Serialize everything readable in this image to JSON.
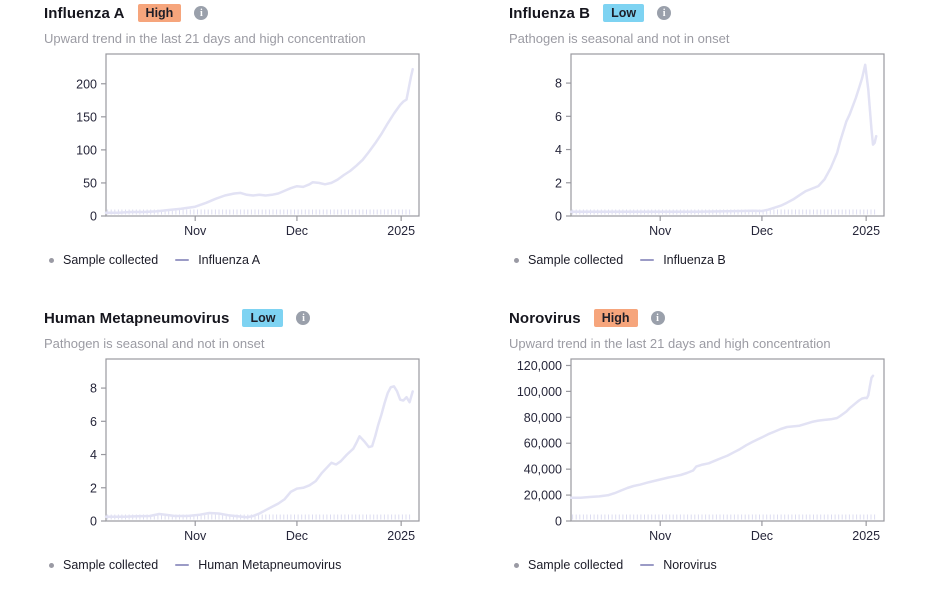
{
  "page": {
    "background": "#ffffff"
  },
  "colors": {
    "title_text": "#16161e",
    "subtitle_text": "#9b9ba3",
    "axis": "#99999f",
    "tick_text": "#26263a",
    "line": "#e2e2f4",
    "sample_tick": "#dcdcf0",
    "legend_dot": "#9a9aa4",
    "legend_dash": "#9b9bc6",
    "badge_high_bg": "#f6a57c",
    "badge_low_bg": "#7ed3f2"
  },
  "cards": [
    {
      "title": "Influenza A",
      "badge": {
        "label": "High",
        "bg": "#f6a57c"
      },
      "subtitle": "Upward trend in the last 21 days and high concentration",
      "legend": {
        "sample_label": "Sample collected",
        "series_label": "Influenza A"
      }
    },
    {
      "title": "Influenza B",
      "badge": {
        "label": "Low",
        "bg": "#7ed3f2"
      },
      "subtitle": "Pathogen is seasonal and not in onset",
      "legend": {
        "sample_label": "Sample collected",
        "series_label": "Influenza B"
      }
    },
    {
      "title": "Human Metapneumovirus",
      "badge": {
        "label": "Low",
        "bg": "#7ed3f2"
      },
      "subtitle": "Pathogen is seasonal and not in onset",
      "legend": {
        "sample_label": "Sample collected",
        "series_label": "Human Metapneumovirus"
      }
    },
    {
      "title": "Norovirus",
      "badge": {
        "label": "High",
        "bg": "#f6a57c"
      },
      "subtitle": "Upward trend in the last 21 days and high concentration",
      "legend": {
        "sample_label": "Sample collected",
        "series_label": "Norovirus"
      }
    }
  ],
  "chart_data": [
    {
      "type": "line",
      "title": "Influenza A",
      "ylim": [
        0,
        245
      ],
      "y_ticks": [
        {
          "v": 0,
          "label": "0"
        },
        {
          "v": 50,
          "label": "50"
        },
        {
          "v": 100,
          "label": "100"
        },
        {
          "v": 150,
          "label": "150"
        },
        {
          "v": 200,
          "label": "200"
        }
      ],
      "x_ticks": [
        {
          "pos": 0.285,
          "label": "Nov"
        },
        {
          "pos": 0.61,
          "label": "Dec"
        },
        {
          "pos": 0.943,
          "label": "2025"
        }
      ],
      "sample_ticks": {
        "from": 0.005,
        "to": 0.97,
        "count": 85
      },
      "series": [
        {
          "name": "Influenza A",
          "color": "#e2e2f4",
          "points": [
            [
              0,
              5
            ],
            [
              0.04,
              5
            ],
            [
              0.08,
              6
            ],
            [
              0.12,
              6
            ],
            [
              0.16,
              7
            ],
            [
              0.2,
              9
            ],
            [
              0.24,
              11
            ],
            [
              0.285,
              14
            ],
            [
              0.32,
              20
            ],
            [
              0.35,
              26
            ],
            [
              0.38,
              31
            ],
            [
              0.41,
              34
            ],
            [
              0.43,
              35
            ],
            [
              0.45,
              32
            ],
            [
              0.47,
              31
            ],
            [
              0.49,
              32
            ],
            [
              0.51,
              31
            ],
            [
              0.53,
              32
            ],
            [
              0.55,
              34
            ],
            [
              0.57,
              38
            ],
            [
              0.59,
              42
            ],
            [
              0.61,
              45
            ],
            [
              0.63,
              44
            ],
            [
              0.65,
              48
            ],
            [
              0.66,
              51
            ],
            [
              0.68,
              50
            ],
            [
              0.7,
              48
            ],
            [
              0.72,
              50
            ],
            [
              0.74,
              55
            ],
            [
              0.76,
              62
            ],
            [
              0.78,
              68
            ],
            [
              0.8,
              76
            ],
            [
              0.82,
              85
            ],
            [
              0.84,
              97
            ],
            [
              0.86,
              110
            ],
            [
              0.88,
              124
            ],
            [
              0.9,
              140
            ],
            [
              0.92,
              155
            ],
            [
              0.94,
              168
            ],
            [
              0.95,
              173
            ],
            [
              0.96,
              176
            ],
            [
              0.97,
              200
            ],
            [
              0.975,
              212
            ],
            [
              0.98,
              222
            ]
          ]
        }
      ]
    },
    {
      "type": "line",
      "title": "Influenza B",
      "ylim": [
        0,
        9.75
      ],
      "y_ticks": [
        {
          "v": 0,
          "label": "0"
        },
        {
          "v": 2,
          "label": "2"
        },
        {
          "v": 4,
          "label": "4"
        },
        {
          "v": 6,
          "label": "6"
        },
        {
          "v": 8,
          "label": "8"
        }
      ],
      "x_ticks": [
        {
          "pos": 0.285,
          "label": "Nov"
        },
        {
          "pos": 0.61,
          "label": "Dec"
        },
        {
          "pos": 0.943,
          "label": "2025"
        }
      ],
      "sample_ticks": {
        "from": 0.005,
        "to": 0.97,
        "count": 85
      },
      "series": [
        {
          "name": "Influenza B",
          "color": "#e2e2f4",
          "points": [
            [
              0,
              0.25
            ],
            [
              0.1,
              0.25
            ],
            [
              0.2,
              0.25
            ],
            [
              0.3,
              0.25
            ],
            [
              0.4,
              0.25
            ],
            [
              0.5,
              0.28
            ],
            [
              0.55,
              0.3
            ],
            [
              0.58,
              0.32
            ],
            [
              0.61,
              0.3
            ],
            [
              0.63,
              0.38
            ],
            [
              0.65,
              0.5
            ],
            [
              0.67,
              0.62
            ],
            [
              0.69,
              0.8
            ],
            [
              0.71,
              1.0
            ],
            [
              0.73,
              1.25
            ],
            [
              0.75,
              1.5
            ],
            [
              0.77,
              1.65
            ],
            [
              0.79,
              1.8
            ],
            [
              0.81,
              2.2
            ],
            [
              0.83,
              2.9
            ],
            [
              0.85,
              3.8
            ],
            [
              0.86,
              4.5
            ],
            [
              0.87,
              5.1
            ],
            [
              0.88,
              5.7
            ],
            [
              0.89,
              6.1
            ],
            [
              0.9,
              6.6
            ],
            [
              0.91,
              7.1
            ],
            [
              0.92,
              7.7
            ],
            [
              0.93,
              8.3
            ],
            [
              0.94,
              9.1
            ],
            [
              0.95,
              7.6
            ],
            [
              0.955,
              6.4
            ],
            [
              0.96,
              5.2
            ],
            [
              0.965,
              4.3
            ],
            [
              0.97,
              4.4
            ],
            [
              0.975,
              4.8
            ]
          ]
        }
      ]
    },
    {
      "type": "line",
      "title": "Human Metapneumovirus",
      "ylim": [
        0,
        9.75
      ],
      "y_ticks": [
        {
          "v": 0,
          "label": "0"
        },
        {
          "v": 2,
          "label": "2"
        },
        {
          "v": 4,
          "label": "4"
        },
        {
          "v": 6,
          "label": "6"
        },
        {
          "v": 8,
          "label": "8"
        }
      ],
      "x_ticks": [
        {
          "pos": 0.285,
          "label": "Nov"
        },
        {
          "pos": 0.61,
          "label": "Dec"
        },
        {
          "pos": 0.943,
          "label": "2025"
        }
      ],
      "sample_ticks": {
        "from": 0.005,
        "to": 0.97,
        "count": 85
      },
      "series": [
        {
          "name": "Human Metapneumovirus",
          "color": "#e2e2f4",
          "points": [
            [
              0,
              0.25
            ],
            [
              0.05,
              0.25
            ],
            [
              0.1,
              0.28
            ],
            [
              0.14,
              0.3
            ],
            [
              0.17,
              0.42
            ],
            [
              0.19,
              0.38
            ],
            [
              0.22,
              0.3
            ],
            [
              0.26,
              0.3
            ],
            [
              0.3,
              0.38
            ],
            [
              0.33,
              0.48
            ],
            [
              0.36,
              0.45
            ],
            [
              0.39,
              0.35
            ],
            [
              0.42,
              0.28
            ],
            [
              0.45,
              0.22
            ],
            [
              0.47,
              0.3
            ],
            [
              0.49,
              0.45
            ],
            [
              0.51,
              0.65
            ],
            [
              0.53,
              0.85
            ],
            [
              0.55,
              1.05
            ],
            [
              0.57,
              1.3
            ],
            [
              0.59,
              1.75
            ],
            [
              0.61,
              1.95
            ],
            [
              0.63,
              2.0
            ],
            [
              0.65,
              2.15
            ],
            [
              0.67,
              2.4
            ],
            [
              0.69,
              2.9
            ],
            [
              0.71,
              3.3
            ],
            [
              0.72,
              3.5
            ],
            [
              0.735,
              3.4
            ],
            [
              0.75,
              3.6
            ],
            [
              0.77,
              4.0
            ],
            [
              0.79,
              4.35
            ],
            [
              0.8,
              4.7
            ],
            [
              0.81,
              5.1
            ],
            [
              0.825,
              4.8
            ],
            [
              0.84,
              4.45
            ],
            [
              0.85,
              4.5
            ],
            [
              0.86,
              5.1
            ],
            [
              0.87,
              5.8
            ],
            [
              0.88,
              6.4
            ],
            [
              0.89,
              7.1
            ],
            [
              0.9,
              7.7
            ],
            [
              0.91,
              8.05
            ],
            [
              0.92,
              8.1
            ],
            [
              0.93,
              7.8
            ],
            [
              0.94,
              7.3
            ],
            [
              0.95,
              7.25
            ],
            [
              0.96,
              7.45
            ],
            [
              0.97,
              7.15
            ],
            [
              0.98,
              7.8
            ]
          ]
        }
      ]
    },
    {
      "type": "line",
      "title": "Norovirus",
      "ylim": [
        0,
        125000
      ],
      "y_ticks": [
        {
          "v": 0,
          "label": "0"
        },
        {
          "v": 20000,
          "label": "20,000"
        },
        {
          "v": 40000,
          "label": "40,000"
        },
        {
          "v": 60000,
          "label": "60,000"
        },
        {
          "v": 80000,
          "label": "80,000"
        },
        {
          "v": 100000,
          "label": "100,000"
        },
        {
          "v": 120000,
          "label": "120,000"
        }
      ],
      "x_ticks": [
        {
          "pos": 0.285,
          "label": "Nov"
        },
        {
          "pos": 0.61,
          "label": "Dec"
        },
        {
          "pos": 0.943,
          "label": "2025"
        }
      ],
      "sample_ticks": {
        "from": 0.005,
        "to": 0.97,
        "count": 85
      },
      "series": [
        {
          "name": "Norovirus",
          "color": "#e2e2f4",
          "points": [
            [
              0,
              18000
            ],
            [
              0.03,
              18000
            ],
            [
              0.06,
              18500
            ],
            [
              0.09,
              19000
            ],
            [
              0.12,
              20000
            ],
            [
              0.14,
              21500
            ],
            [
              0.16,
              23500
            ],
            [
              0.18,
              25500
            ],
            [
              0.2,
              27000
            ],
            [
              0.22,
              28000
            ],
            [
              0.25,
              30000
            ],
            [
              0.285,
              32000
            ],
            [
              0.31,
              33500
            ],
            [
              0.33,
              34500
            ],
            [
              0.35,
              35500
            ],
            [
              0.37,
              37000
            ],
            [
              0.39,
              39000
            ],
            [
              0.4,
              42000
            ],
            [
              0.42,
              43500
            ],
            [
              0.44,
              44500
            ],
            [
              0.46,
              46500
            ],
            [
              0.48,
              48500
            ],
            [
              0.5,
              50500
            ],
            [
              0.52,
              53000
            ],
            [
              0.54,
              55500
            ],
            [
              0.56,
              58500
            ],
            [
              0.58,
              61000
            ],
            [
              0.61,
              64500
            ],
            [
              0.63,
              67000
            ],
            [
              0.65,
              69000
            ],
            [
              0.67,
              71000
            ],
            [
              0.69,
              72500
            ],
            [
              0.71,
              73000
            ],
            [
              0.73,
              73500
            ],
            [
              0.75,
              75000
            ],
            [
              0.77,
              76500
            ],
            [
              0.79,
              77500
            ],
            [
              0.81,
              78000
            ],
            [
              0.83,
              78500
            ],
            [
              0.85,
              79500
            ],
            [
              0.86,
              81000
            ],
            [
              0.88,
              84500
            ],
            [
              0.89,
              87000
            ],
            [
              0.9,
              89000
            ],
            [
              0.91,
              91000
            ],
            [
              0.92,
              93000
            ],
            [
              0.93,
              94500
            ],
            [
              0.94,
              95000
            ],
            [
              0.945,
              94800
            ],
            [
              0.95,
              97000
            ],
            [
              0.955,
              104000
            ],
            [
              0.96,
              110500
            ],
            [
              0.965,
              112000
            ]
          ]
        }
      ]
    }
  ]
}
